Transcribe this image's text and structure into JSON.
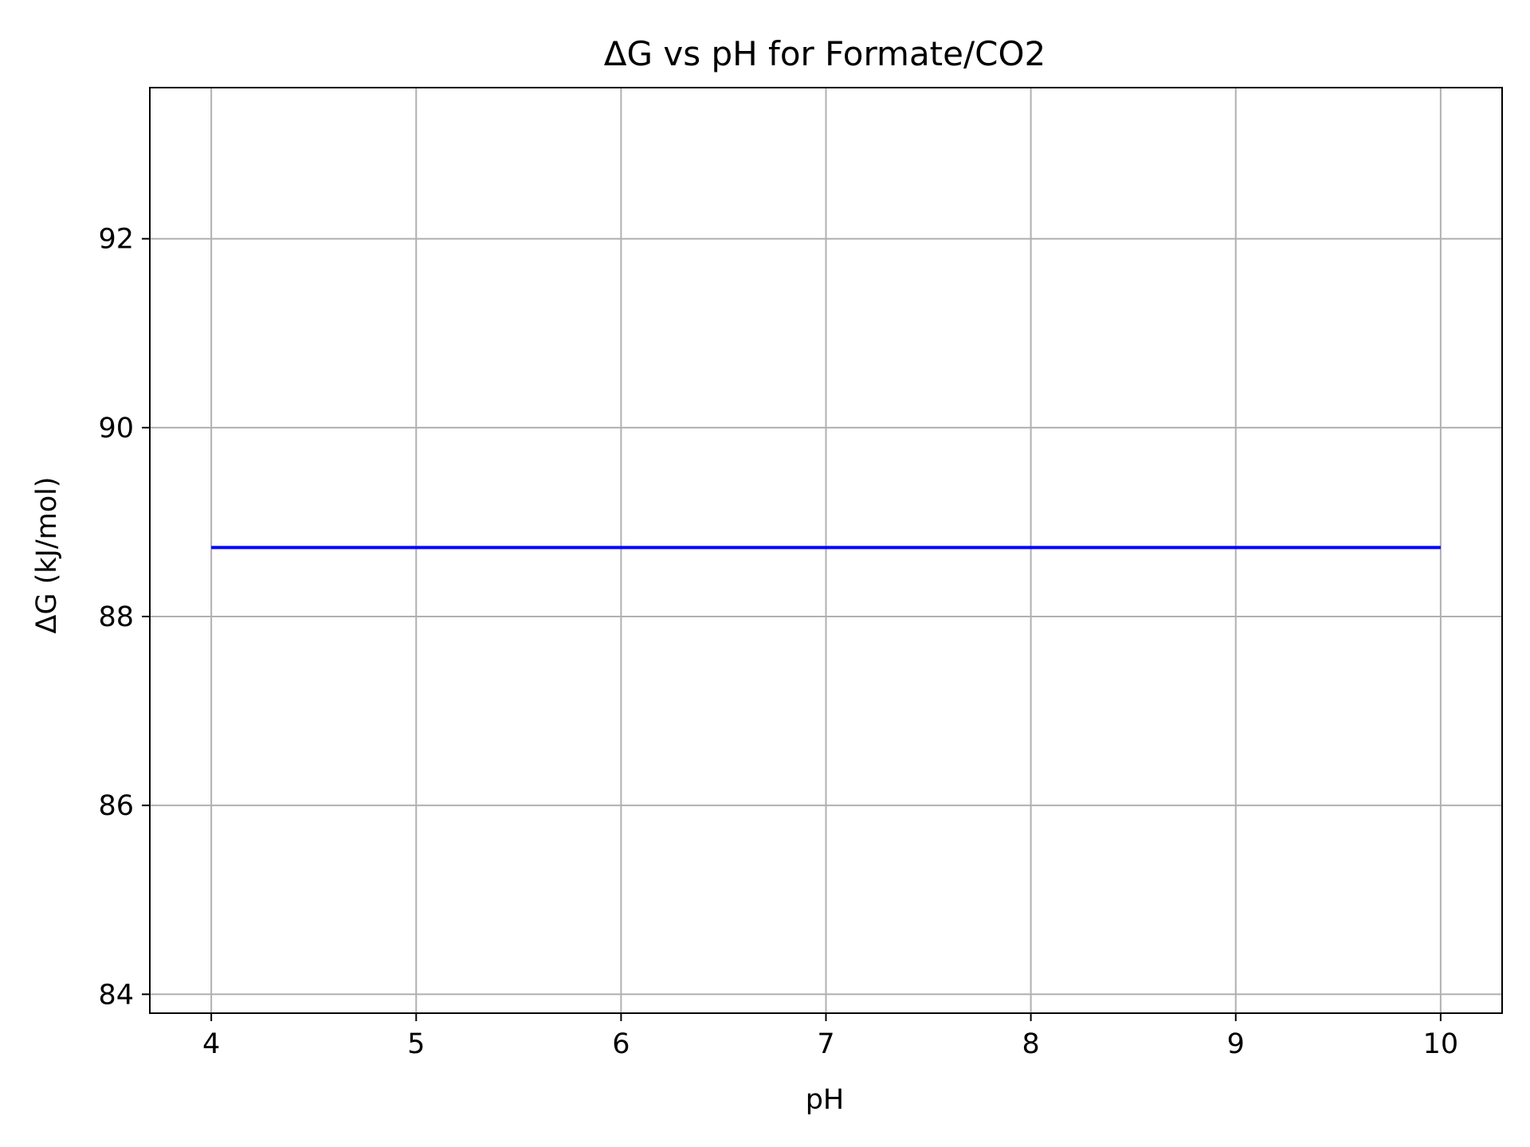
{
  "chart_data": {
    "type": "line",
    "title": "ΔG vs pH for Formate/CO2",
    "xlabel": "pH",
    "ylabel": "ΔG (kJ/mol)",
    "xlim": [
      3.7,
      10.3
    ],
    "ylim": [
      83.8,
      93.6
    ],
    "xticks": [
      4,
      5,
      6,
      7,
      8,
      9,
      10
    ],
    "yticks": [
      84,
      86,
      88,
      90,
      92
    ],
    "grid": true,
    "legend": "none",
    "series": [
      {
        "color": "#0000ff",
        "x": [
          4,
          5,
          6,
          7,
          8,
          9,
          10
        ],
        "y": [
          88.73,
          88.73,
          88.73,
          88.73,
          88.73,
          88.73,
          88.73
        ]
      }
    ]
  },
  "colors": {
    "grid": "#b0b0b0",
    "axes": "#000000",
    "background": "#ffffff"
  }
}
